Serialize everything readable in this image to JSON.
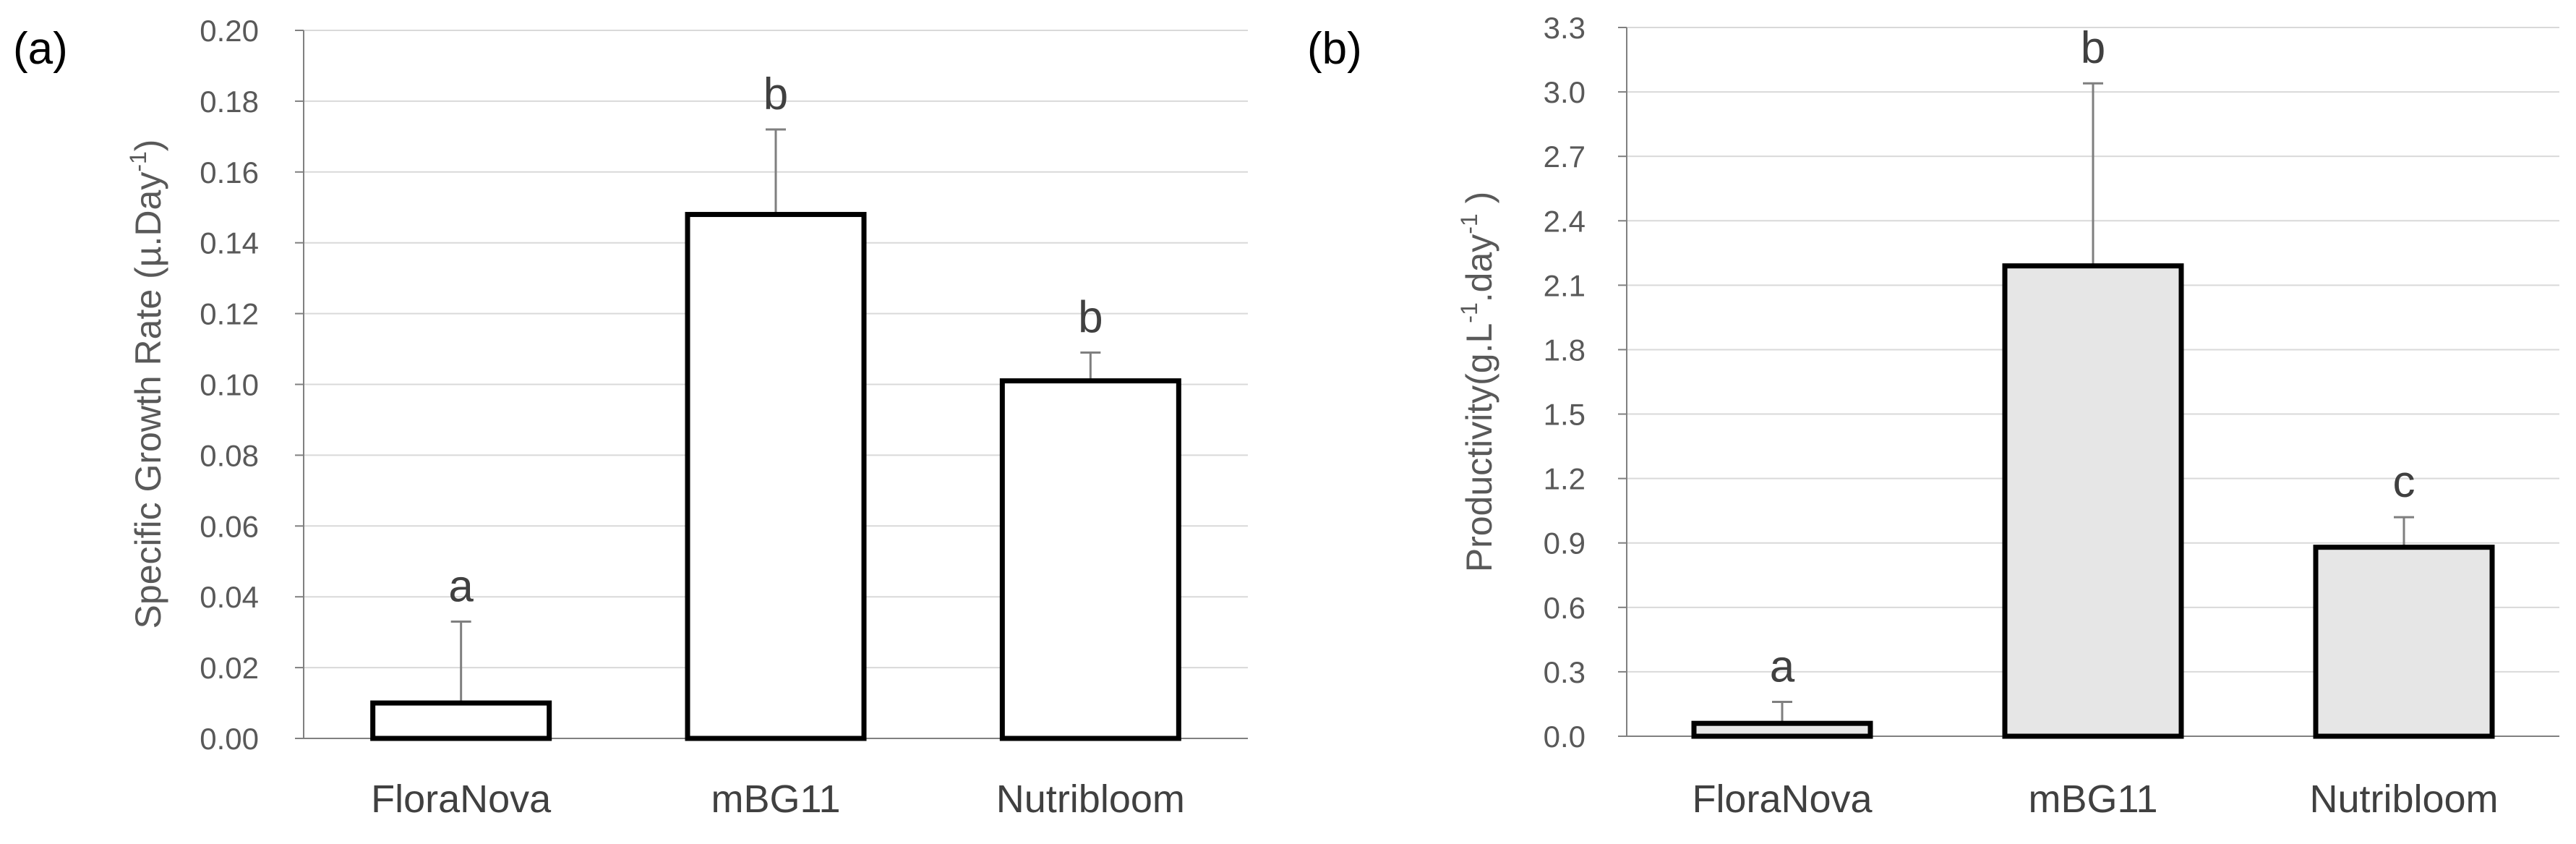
{
  "chart_data": [
    {
      "panel_label": "(a)",
      "type": "bar",
      "categories": [
        "FloraNova",
        "mBG11",
        "Nutribloom"
      ],
      "values": [
        0.01,
        0.148,
        0.101
      ],
      "errors": [
        0.023,
        0.024,
        0.008
      ],
      "letters": [
        "a",
        "b",
        "b"
      ],
      "ylabel": "Specific Growth Rate (µ.Day",
      "ylabel_sup": "-1",
      "ylabel_tail": ")",
      "ylim": [
        0,
        0.2
      ],
      "yticks": [
        "0.00",
        "0.02",
        "0.04",
        "0.06",
        "0.08",
        "0.10",
        "0.12",
        "0.14",
        "0.16",
        "0.18",
        "0.20"
      ],
      "bar_fill": "#ffffff",
      "grid": true
    },
    {
      "panel_label": "(b)",
      "type": "bar",
      "categories": [
        "FloraNova",
        "mBG11",
        "Nutribloom"
      ],
      "values": [
        0.06,
        2.19,
        0.88
      ],
      "errors": [
        0.1,
        0.85,
        0.14
      ],
      "letters": [
        "a",
        "b",
        "c"
      ],
      "ylabel": "Productivity(g.L",
      "ylabel_sup": "-1",
      "ylabel_mid": ".day",
      "ylabel_sup2": "-1",
      "ylabel_tail": " )",
      "ylim": [
        0,
        3.3
      ],
      "yticks": [
        "0.0",
        "0.3",
        "0.6",
        "0.9",
        "1.2",
        "1.5",
        "1.8",
        "2.1",
        "2.4",
        "2.7",
        "3.0",
        "3.3"
      ],
      "bar_fill": "#e6e6e6",
      "grid": true
    }
  ]
}
